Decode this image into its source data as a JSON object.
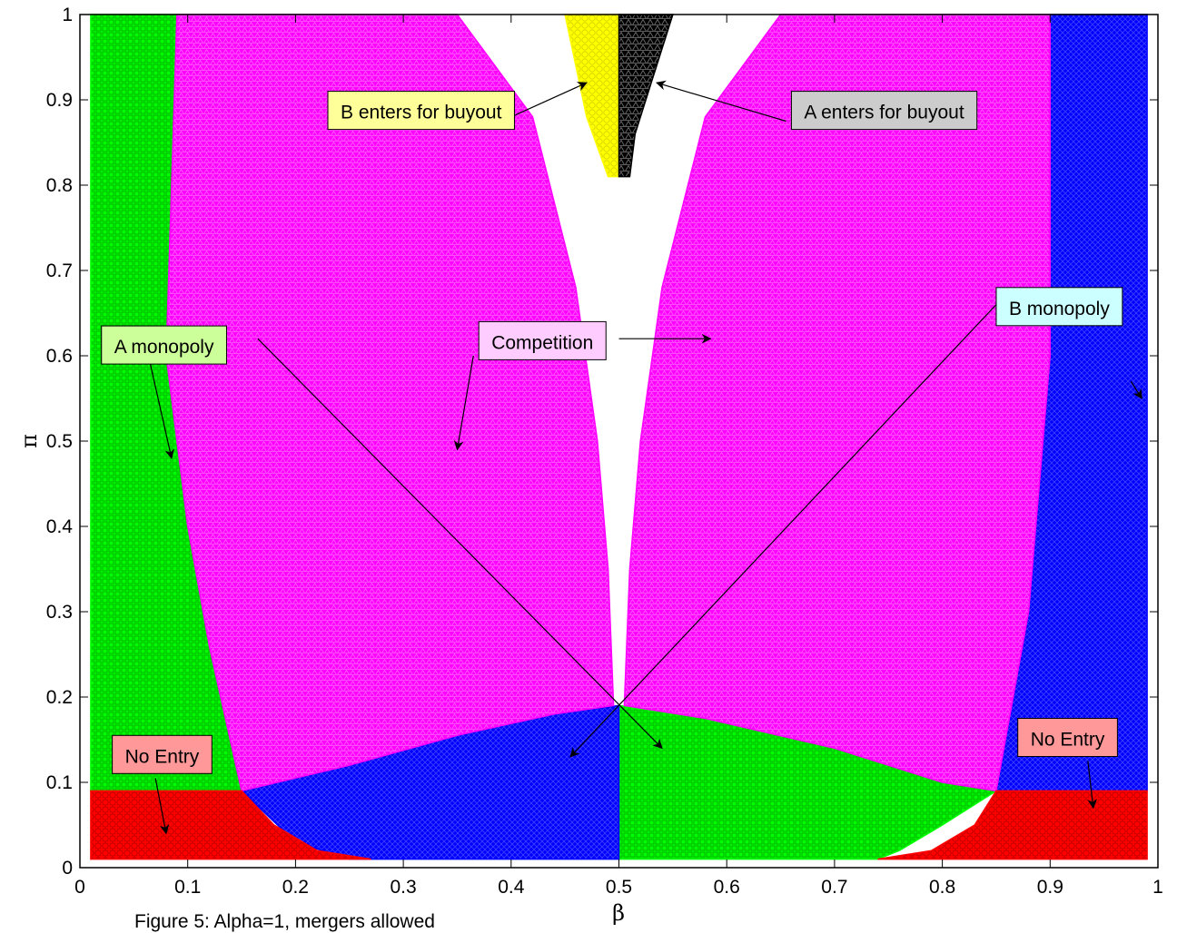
{
  "chart_data": {
    "type": "scatter",
    "title": "",
    "xlabel": "β",
    "ylabel": "π",
    "xlim": [
      0,
      1
    ],
    "ylim": [
      0,
      1
    ],
    "x_ticks": [
      "0",
      "0.1",
      "0.2",
      "0.3",
      "0.4",
      "0.5",
      "0.6",
      "0.7",
      "0.8",
      "0.9",
      "1"
    ],
    "y_ticks": [
      "0",
      "0.1",
      "0.2",
      "0.3",
      "0.4",
      "0.5",
      "0.6",
      "0.7",
      "0.8",
      "0.9",
      "1"
    ],
    "grid": false,
    "regions": [
      {
        "label": "A monopoly",
        "color": "#00ff00",
        "marker": "square",
        "polygons": [
          [
            [
              0.01,
              0.09
            ],
            [
              0.01,
              1.0
            ],
            [
              0.09,
              1.0
            ],
            [
              0.1,
              0.6
            ],
            [
              0.12,
              0.4
            ],
            [
              0.14,
              0.26
            ],
            [
              0.155,
              0.15
            ],
            [
              0.16,
              0.09
            ]
          ],
          [
            [
              0.5,
              0.19
            ],
            [
              0.58,
              0.175
            ],
            [
              0.7,
              0.14
            ],
            [
              0.8,
              0.1
            ],
            [
              0.85,
              0.09
            ],
            [
              0.8,
              0.05
            ],
            [
              0.76,
              0.02
            ],
            [
              0.74,
              0.01
            ],
            [
              0.5,
              0.01
            ]
          ]
        ]
      },
      {
        "label": "B monopoly",
        "color": "#0000ff",
        "marker": "x",
        "polygons": [
          [
            [
              0.9,
              1.0
            ],
            [
              0.99,
              1.0
            ],
            [
              0.99,
              0.09
            ],
            [
              0.85,
              0.09
            ],
            [
              0.88,
              0.3
            ],
            [
              0.9,
              0.6
            ]
          ],
          [
            [
              0.15,
              0.09
            ],
            [
              0.25,
              0.12
            ],
            [
              0.35,
              0.155
            ],
            [
              0.44,
              0.18
            ],
            [
              0.5,
              0.19
            ],
            [
              0.5,
              0.01
            ],
            [
              0.25,
              0.01
            ],
            [
              0.2,
              0.03
            ]
          ]
        ]
      },
      {
        "label": "Competition",
        "color": "#ff00ff",
        "marker": "triangle",
        "polygons": [
          [
            [
              0.09,
              1.0
            ],
            [
              0.35,
              1.0
            ],
            [
              0.42,
              0.88
            ],
            [
              0.46,
              0.68
            ],
            [
              0.48,
              0.5
            ],
            [
              0.49,
              0.35
            ],
            [
              0.495,
              0.19
            ],
            [
              0.44,
              0.18
            ],
            [
              0.35,
              0.155
            ],
            [
              0.25,
              0.12
            ],
            [
              0.15,
              0.09
            ],
            [
              0.12,
              0.26
            ],
            [
              0.1,
              0.4
            ],
            [
              0.08,
              0.6
            ]
          ],
          [
            [
              0.65,
              1.0
            ],
            [
              0.9,
              1.0
            ],
            [
              0.9,
              0.6
            ],
            [
              0.88,
              0.3
            ],
            [
              0.85,
              0.09
            ],
            [
              0.8,
              0.1
            ],
            [
              0.7,
              0.14
            ],
            [
              0.58,
              0.175
            ],
            [
              0.505,
              0.19
            ],
            [
              0.51,
              0.35
            ],
            [
              0.52,
              0.5
            ],
            [
              0.54,
              0.68
            ],
            [
              0.58,
              0.88
            ]
          ]
        ]
      },
      {
        "label": "No Entry",
        "color": "#ff0000",
        "marker": "circle",
        "polygons": [
          [
            [
              0.01,
              0.01
            ],
            [
              0.01,
              0.09
            ],
            [
              0.15,
              0.09
            ],
            [
              0.18,
              0.05
            ],
            [
              0.22,
              0.02
            ],
            [
              0.27,
              0.01
            ]
          ],
          [
            [
              0.74,
              0.01
            ],
            [
              0.79,
              0.02
            ],
            [
              0.83,
              0.05
            ],
            [
              0.85,
              0.09
            ],
            [
              0.99,
              0.09
            ],
            [
              0.99,
              0.01
            ]
          ]
        ]
      },
      {
        "label": "B enters for buyout",
        "color": "#ffff00",
        "marker": "circle",
        "polygons": [
          [
            [
              0.45,
              1.0
            ],
            [
              0.5,
              1.0
            ],
            [
              0.5,
              0.81
            ],
            [
              0.49,
              0.81
            ],
            [
              0.47,
              0.88
            ],
            [
              0.46,
              0.94
            ]
          ]
        ]
      },
      {
        "label": "A enters for buyout",
        "color": "#000000",
        "marker": "triangle",
        "polygons": [
          [
            [
              0.5,
              1.0
            ],
            [
              0.55,
              1.0
            ],
            [
              0.53,
              0.92
            ],
            [
              0.515,
              0.86
            ],
            [
              0.51,
              0.81
            ],
            [
              0.5,
              0.81
            ]
          ]
        ]
      }
    ],
    "annotations": [
      {
        "text": "A monopoly",
        "bg": "#ccff99",
        "box": [
          0.02,
          0.635
        ],
        "anchor": "top-left",
        "arrows": [
          [
            [
              0.06,
              0.62
            ],
            [
              0.085,
              0.48
            ]
          ],
          [
            [
              0.165,
              0.62
            ],
            [
              0.54,
              0.14
            ]
          ]
        ]
      },
      {
        "text": "Competition",
        "bg": "#ffccff",
        "box": [
          0.37,
          0.64
        ],
        "anchor": "top-left",
        "arrows": [
          [
            [
              0.365,
              0.6
            ],
            [
              0.35,
              0.49
            ]
          ],
          [
            [
              0.5,
              0.62
            ],
            [
              0.585,
              0.62
            ]
          ]
        ]
      },
      {
        "text": "B monopoly",
        "bg": "#ccffff",
        "box": [
          0.85,
          0.68
        ],
        "anchor": "top-left",
        "arrows": [
          [
            [
              0.975,
              0.57
            ],
            [
              0.985,
              0.55
            ]
          ],
          [
            [
              0.85,
              0.66
            ],
            [
              0.455,
              0.13
            ]
          ]
        ]
      },
      {
        "text": "B enters for buyout",
        "bg": "#ffff99",
        "box": [
          0.23,
          0.91
        ],
        "anchor": "top-left",
        "arrows": [
          [
            [
              0.4,
              0.88
            ],
            [
              0.47,
              0.92
            ]
          ]
        ]
      },
      {
        "text": "A enters for buyout",
        "bg": "#cccccc",
        "box": [
          0.66,
          0.91
        ],
        "anchor": "top-left",
        "arrows": [
          [
            [
              0.655,
              0.875
            ],
            [
              0.535,
              0.92
            ]
          ]
        ]
      },
      {
        "text": "No Entry",
        "bg": "#ff9999",
        "box": [
          0.03,
          0.155
        ],
        "anchor": "top-left",
        "arrows": [
          [
            [
              0.07,
              0.105
            ],
            [
              0.08,
              0.04
            ]
          ]
        ]
      },
      {
        "text": "No Entry",
        "bg": "#ff9999",
        "box": [
          0.87,
          0.175
        ],
        "anchor": "top-left",
        "arrows": [
          [
            [
              0.935,
              0.125
            ],
            [
              0.94,
              0.07
            ]
          ]
        ]
      }
    ]
  },
  "caption": "Figure 5: Alpha=1, mergers allowed"
}
